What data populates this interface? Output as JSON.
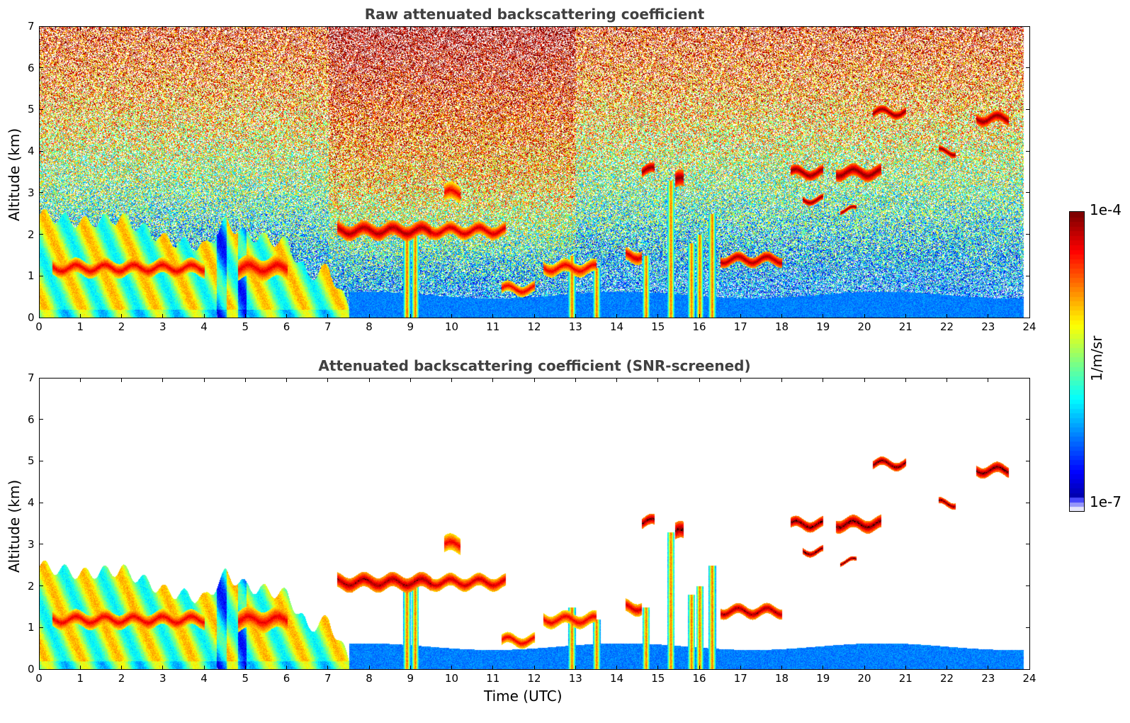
{
  "chart_data": [
    {
      "type": "heatmap",
      "title": "Raw attenuated backscattering coefficient",
      "xlabel": "",
      "ylabel": "Altitude (km)",
      "xlim": [
        0,
        24
      ],
      "ylim": [
        0,
        7
      ],
      "xticks": [
        "0",
        "1",
        "2",
        "3",
        "4",
        "5",
        "6",
        "7",
        "8",
        "9",
        "10",
        "11",
        "12",
        "13",
        "14",
        "15",
        "16",
        "17",
        "18",
        "19",
        "20",
        "21",
        "22",
        "23",
        "24"
      ],
      "yticks": [
        "0",
        "1",
        "2",
        "3",
        "4",
        "5",
        "6",
        "7"
      ],
      "screened": false
    },
    {
      "type": "heatmap",
      "title": "Attenuated backscattering coefficient (SNR-screened)",
      "xlabel": "Time (UTC)",
      "ylabel": "Altitude (km)",
      "xlim": [
        0,
        24
      ],
      "ylim": [
        0,
        7
      ],
      "xticks": [
        "0",
        "1",
        "2",
        "3",
        "4",
        "5",
        "6",
        "7",
        "8",
        "9",
        "10",
        "11",
        "12",
        "13",
        "14",
        "15",
        "16",
        "17",
        "18",
        "19",
        "20",
        "21",
        "22",
        "23",
        "24"
      ],
      "yticks": [
        "0",
        "1",
        "2",
        "3",
        "4",
        "5",
        "6",
        "7"
      ],
      "screened": true
    }
  ],
  "colorbar": {
    "max_label": "1e-4",
    "min_label": "1e-7",
    "unit": "1/m/sr",
    "log_range": [
      -7,
      -4
    ],
    "colormap": "jet"
  },
  "features": {
    "boundary_layer": [
      [
        0,
        2.5
      ],
      [
        1,
        2.3
      ],
      [
        2,
        2.4
      ],
      [
        3,
        1.9
      ],
      [
        4,
        1.7
      ],
      [
        4.5,
        2.3
      ],
      [
        5,
        2.0
      ],
      [
        6,
        1.8
      ],
      [
        6.5,
        1.0
      ],
      [
        7,
        1.2
      ],
      [
        7.5,
        0.2
      ]
    ],
    "layers": [
      {
        "t0": 0.3,
        "t1": 4.0,
        "alt": 1.2,
        "thick": 0.35,
        "logv": -4.3
      },
      {
        "t0": 4.8,
        "t1": 6.0,
        "alt": 1.2,
        "thick": 0.5,
        "logv": -4.3
      },
      {
        "t0": 7.2,
        "t1": 9.5,
        "alt": 2.1,
        "thick": 0.35,
        "logv": -4.1
      },
      {
        "t0": 9.5,
        "t1": 11.3,
        "alt": 2.1,
        "thick": 0.3,
        "logv": -4.2
      },
      {
        "t0": 9.8,
        "t1": 10.2,
        "alt": 3.0,
        "thick": 0.4,
        "logv": -4.3
      },
      {
        "t0": 11.2,
        "t1": 12.0,
        "alt": 0.7,
        "thick": 0.25,
        "logv": -4.3
      },
      {
        "t0": 12.2,
        "t1": 13.5,
        "alt": 1.2,
        "thick": 0.3,
        "logv": -4.3
      },
      {
        "t0": 14.2,
        "t1": 14.6,
        "alt": 1.5,
        "thick": 0.3,
        "logv": -4.2
      },
      {
        "t0": 14.6,
        "t1": 14.9,
        "alt": 3.55,
        "thick": 0.25,
        "logv": -4.0
      },
      {
        "t0": 15.4,
        "t1": 15.6,
        "alt": 3.3,
        "thick": 0.4,
        "logv": -4.0
      },
      {
        "t0": 16.5,
        "t1": 18.0,
        "alt": 1.4,
        "thick": 0.25,
        "logv": -4.1
      },
      {
        "t0": 18.2,
        "t1": 19.0,
        "alt": 3.5,
        "thick": 0.25,
        "logv": -4.0
      },
      {
        "t0": 19.3,
        "t1": 20.4,
        "alt": 3.5,
        "thick": 0.3,
        "logv": -4.0
      },
      {
        "t0": 18.5,
        "t1": 19.0,
        "alt": 2.85,
        "thick": 0.15,
        "logv": -4.0
      },
      {
        "t0": 19.4,
        "t1": 19.8,
        "alt": 2.6,
        "thick": 0.1,
        "logv": -4.0
      },
      {
        "t0": 20.2,
        "t1": 21.0,
        "alt": 4.95,
        "thick": 0.2,
        "logv": -4.0
      },
      {
        "t0": 21.8,
        "t1": 22.2,
        "alt": 4.0,
        "thick": 0.15,
        "logv": -4.0
      },
      {
        "t0": 22.7,
        "t1": 23.5,
        "alt": 4.8,
        "thick": 0.25,
        "logv": -4.0
      }
    ],
    "plumes": [
      [
        8.9,
        2.1
      ],
      [
        9.1,
        2.0
      ],
      [
        12.9,
        1.5
      ],
      [
        13.5,
        1.2
      ],
      [
        14.7,
        1.5
      ],
      [
        15.3,
        3.3
      ],
      [
        15.8,
        1.8
      ],
      [
        16.0,
        2.0
      ],
      [
        16.3,
        2.5
      ]
    ]
  }
}
